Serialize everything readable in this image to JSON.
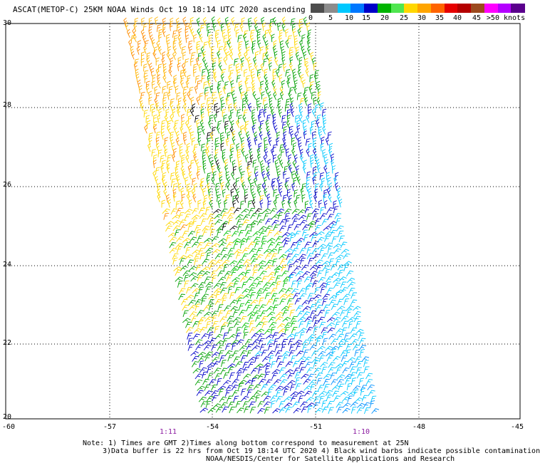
{
  "title": "ASCAT(METOP-C) 25KM NOAA Winds Oct 19 18:14 UTC 2020 ascending",
  "legend": {
    "colors": [
      "#4d4d4d",
      "#8c8c8c",
      "#00c8ff",
      "#0078ff",
      "#0000c8",
      "#00b400",
      "#50e650",
      "#ffd700",
      "#ffa500",
      "#ff6400",
      "#e60000",
      "#b40000",
      "#9c4a1e",
      "#ff00ff",
      "#b400ff",
      "#5a008c"
    ],
    "labels": [
      "0",
      "5",
      "10",
      "15",
      "20",
      "25",
      "30",
      "35",
      "40",
      "45",
      ">50 knots"
    ]
  },
  "axes": {
    "lat_labels": [
      "30",
      "28",
      "26",
      "24",
      "22",
      "20"
    ],
    "lon_labels": [
      "-60",
      "-57",
      "-54",
      "-51",
      "-48",
      "-45"
    ]
  },
  "time_labels": [
    "1:11",
    "1:10"
  ],
  "notes": [
    "Note: 1) Times are GMT 2)Times along bottom correspond to measurement at 25N",
    "3)Data buffer is 22 hrs from Oct 19 18:14 UTC 2020 4) Black wind barbs indicate possible contamination",
    "NOAA/NESDIS/Center for Satellite Applications and Research"
  ],
  "colors": {
    "time_label": "#8a1aa0",
    "grid": "#000000"
  }
}
